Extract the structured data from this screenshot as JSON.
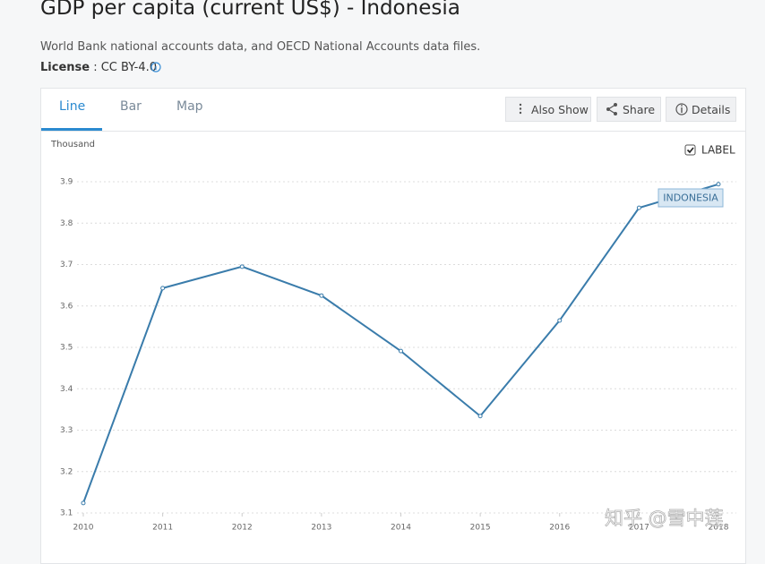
{
  "header": {
    "title": "GDP per capita (current US$) - Indonesia",
    "source": "World Bank national accounts data, and OECD National Accounts data files.",
    "license_label": "License",
    "license_value": ": CC BY-4.0"
  },
  "tabs": [
    "Line",
    "Bar",
    "Map"
  ],
  "buttons": [
    "Also Show",
    "Share",
    "Details"
  ],
  "chart_data": {
    "type": "line",
    "y_label": "Thousand",
    "label_toggle": "LABEL",
    "x": [
      2010,
      2011,
      2012,
      2013,
      2014,
      2015,
      2016,
      2017,
      2018
    ],
    "xlim": [
      2010,
      2018
    ],
    "xticks": [
      2010,
      2011,
      2012,
      2013,
      2014,
      2015,
      2016,
      2017,
      2018
    ],
    "ylim": [
      3.1,
      3.9
    ],
    "yticks": [
      3.1,
      3.2,
      3.3,
      3.4,
      3.5,
      3.6,
      3.7,
      3.8,
      3.9
    ],
    "grid": true,
    "series": [
      {
        "name": "INDONESIA",
        "color": "#3a7cab",
        "values": [
          3.124,
          3.643,
          3.695,
          3.625,
          3.491,
          3.334,
          3.565,
          3.837,
          3.894
        ]
      }
    ]
  },
  "watermark": "知乎 @雪中莲"
}
